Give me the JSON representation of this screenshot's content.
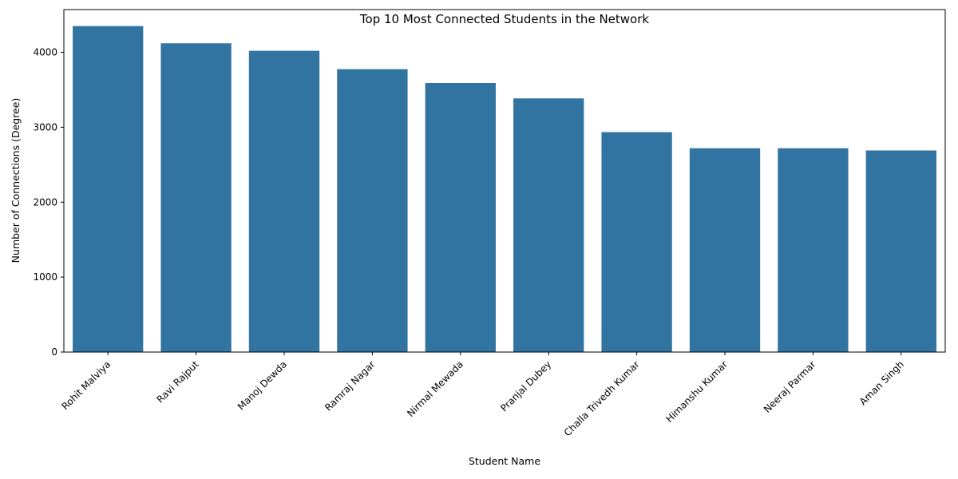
{
  "chart_data": {
    "type": "bar",
    "title": "Top 10 Most Connected Students in the Network",
    "xlabel": "Student Name",
    "ylabel": "Number of Connections (Degree)",
    "categories": [
      "Rohit Malviya",
      "Ravi Rajput",
      "Manoj Dewda",
      "Ramraj Nagar",
      "Nirmal Mewada",
      "Pranjal Dubey",
      "Challa Trivedh Kumar",
      "Himanshu Kumar",
      "Neeraj Parmar",
      "Aman Singh"
    ],
    "values": [
      4350,
      4120,
      4020,
      3775,
      3590,
      3385,
      2935,
      2720,
      2720,
      2690
    ],
    "ylim": [
      0,
      4570
    ],
    "yticks": [
      0,
      1000,
      2000,
      3000,
      4000
    ],
    "bar_color": "#3274a1",
    "grid": false,
    "legend": false
  }
}
